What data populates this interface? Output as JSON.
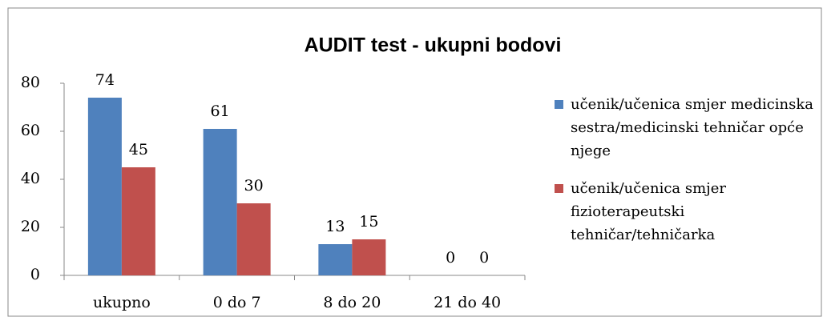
{
  "chart_data": {
    "type": "bar",
    "title": "AUDIT test - ukupni bodovi",
    "categories": [
      "ukupno",
      "0 do 7",
      "8 do 20",
      "21 do 40"
    ],
    "series": [
      {
        "name": "učenik/učenica smjer medicinska sestra/medicinski tehničar opće njege",
        "color": "#4f81bd",
        "values": [
          74,
          61,
          13,
          0
        ]
      },
      {
        "name": "učenik/učenica smjer fizioterapeutski tehničar/tehničarka",
        "color": "#c0504d",
        "values": [
          45,
          30,
          15,
          0
        ]
      }
    ],
    "ylim": [
      0,
      80
    ],
    "yticks": [
      0,
      20,
      40,
      60,
      80
    ],
    "legend": "right",
    "grid": false
  }
}
